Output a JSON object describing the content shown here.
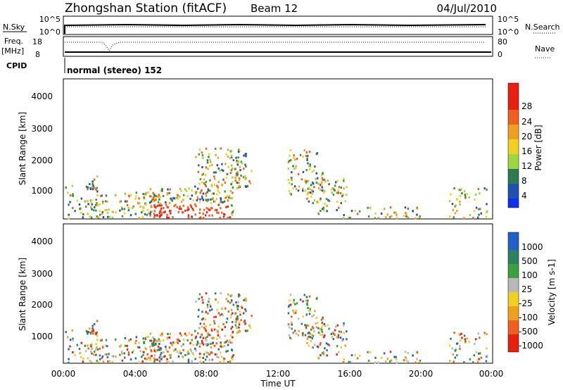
{
  "header": {
    "title": "Zhongshan Station (fitACF)",
    "beam": "Beam 12",
    "date": "04/Jul/2010"
  },
  "status_panels": {
    "nsky_label": "N.Sky",
    "freq_label": "Freq.",
    "freq_unit": "[MHz]",
    "cpid_label": "CPID",
    "nsearch_label": "N.Search",
    "nave_label": "Nave",
    "nsky_ticks": [
      "10^5",
      "10^0"
    ],
    "freq_ticks": [
      "18",
      "8"
    ],
    "nave_ticks": [
      "80",
      "0"
    ],
    "cpid_text": "normal (stereo) 152"
  },
  "chart_data": [
    {
      "type": "heatmap",
      "ylabel": "Slant Range [km]",
      "xlabel": "",
      "yticks": [
        "1000",
        "2000",
        "3000",
        "4000"
      ],
      "ylim": [
        200,
        4600
      ],
      "xlim": [
        0,
        24
      ],
      "colorbar_label": "Power [dB]",
      "colorbar_ticks": [
        "4",
        "8",
        "12",
        "16",
        "20",
        "24",
        "28"
      ],
      "colors": [
        "#1030f0",
        "#2050b0",
        "#2e7a50",
        "#3a9a40",
        "#9ed640",
        "#f0d020",
        "#f0a020",
        "#ee6020",
        "#e82010"
      ],
      "grid": false
    },
    {
      "type": "heatmap",
      "ylabel": "Slant Range [km]",
      "xlabel": "Time UT",
      "yticks": [
        "1000",
        "2000",
        "3000",
        "4000"
      ],
      "xticks": [
        "00:00",
        "04:00",
        "08:00",
        "12:00",
        "16:00",
        "20:00",
        "00:00"
      ],
      "ylim": [
        200,
        4600
      ],
      "xlim": [
        0,
        24
      ],
      "colorbar_label": "Velocity [m s-1]",
      "colorbar_ticks": [
        "1000",
        "500",
        "100",
        "25",
        "-25",
        "-100",
        "-500",
        "-1000"
      ],
      "colors": [
        "#2060c8",
        "#2f8060",
        "#3aa040",
        "#b8b8b8",
        "#f0d020",
        "#f0a020",
        "#ee6020",
        "#e82010"
      ],
      "grid": false
    }
  ]
}
